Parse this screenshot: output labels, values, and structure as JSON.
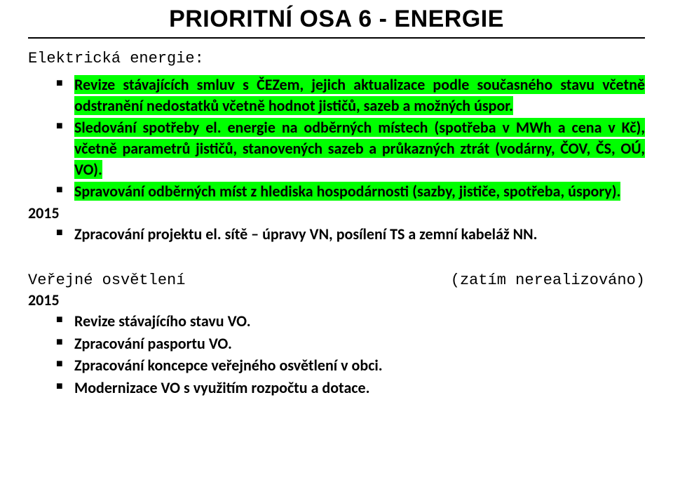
{
  "title": "PRIORITNÍ OSA 6 - ENERGIE",
  "section1": {
    "heading": "Elektrická energie:",
    "items": [
      "Revize stávajících smluv s ČEZem, jejich aktualizace podle současného stavu včetně odstranění nedostatků včetně hodnot jističů, sazeb a možných úspor.",
      "Sledování spotřeby el. energie na odběrných místech (spotřeba v MWh a cena v Kč), včetně parametrů jističů, stanovených sazeb a průkazných ztrát (vodárny, ČOV, ČS, OÚ, VO).",
      "Spravování odběrných míst z hlediska hospodárnosti (sazby, jističe, spotřeba, úspory)."
    ],
    "year": "2015",
    "afterYearItems": [
      "Zpracování projektu el. sítě – úpravy VN, posílení TS a zemní kabeláž NN."
    ]
  },
  "section2": {
    "heading": "Veřejné osvětlení",
    "note": "(zatím nerealizováno)",
    "year": "2015",
    "items": [
      "Revize stávajícího stavu VO.",
      "Zpracování pasportu VO.",
      "Zpracování koncepce veřejného osvětlení v obci.",
      "Modernizace VO s využitím rozpočtu a dotace."
    ]
  },
  "colors": {
    "highlight": "#00ff00",
    "text": "#000000",
    "background": "#ffffff"
  }
}
